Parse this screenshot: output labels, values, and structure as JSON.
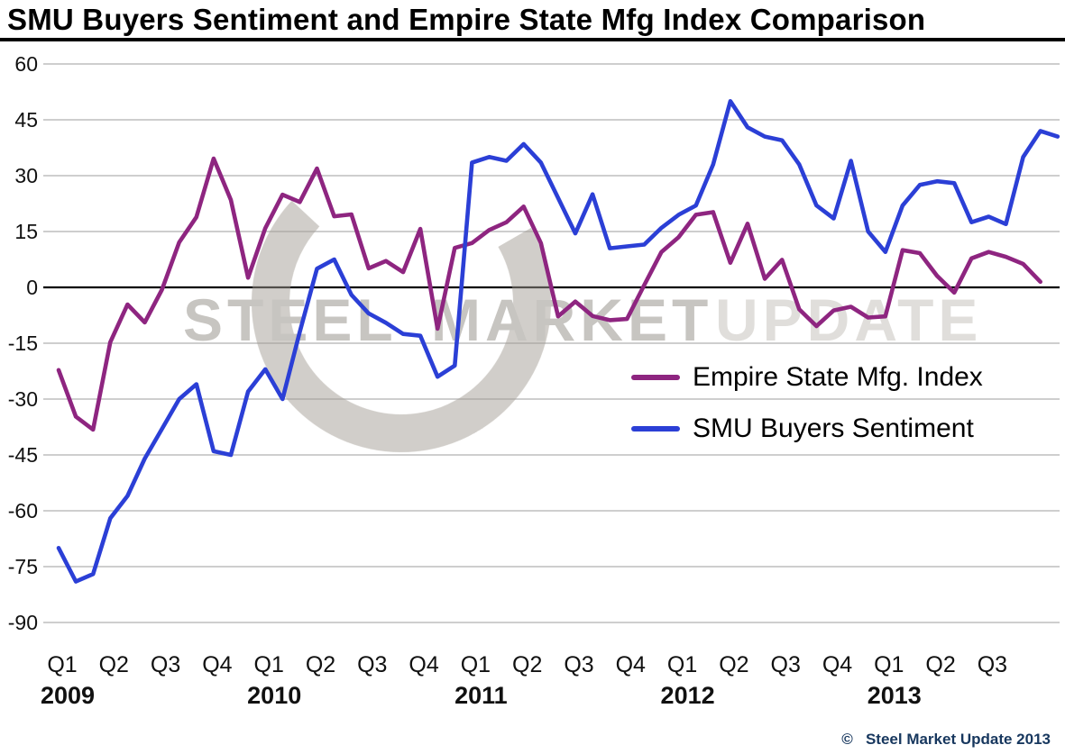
{
  "page": {
    "title": "SMU Buyers Sentiment and Empire State Mfg Index Comparison",
    "copyright": "©   Steel Market Update 2013"
  },
  "watermark": {
    "words": [
      "STEEL",
      "MARKET",
      "UPDATE"
    ]
  },
  "chart_data": {
    "type": "line",
    "title": "SMU Buyers Sentiment and Empire State Mfg Index Comparison",
    "xlabel": "",
    "ylabel": "",
    "grid": true,
    "legend_position": "middle-right",
    "y_axis": {
      "min": -90,
      "max": 60,
      "tick_step": 15,
      "ticks": [
        60,
        45,
        30,
        15,
        0,
        -15,
        -30,
        -45,
        -60,
        -75,
        -90
      ]
    },
    "x_axis": {
      "unit": "month",
      "start": "Q1 2009",
      "quarter_labels": [
        {
          "label": "Q1",
          "month_index": 0
        },
        {
          "label": "Q2",
          "month_index": 3
        },
        {
          "label": "Q3",
          "month_index": 6
        },
        {
          "label": "Q4",
          "month_index": 9
        },
        {
          "label": "Q1",
          "month_index": 12
        },
        {
          "label": "Q2",
          "month_index": 15
        },
        {
          "label": "Q3",
          "month_index": 18
        },
        {
          "label": "Q4",
          "month_index": 21
        },
        {
          "label": "Q1",
          "month_index": 24
        },
        {
          "label": "Q2",
          "month_index": 27
        },
        {
          "label": "Q3",
          "month_index": 30
        },
        {
          "label": "Q4",
          "month_index": 33
        },
        {
          "label": "Q1",
          "month_index": 36
        },
        {
          "label": "Q2",
          "month_index": 39
        },
        {
          "label": "Q3",
          "month_index": 42
        },
        {
          "label": "Q4",
          "month_index": 45
        },
        {
          "label": "Q1",
          "month_index": 48
        },
        {
          "label": "Q2",
          "month_index": 51
        },
        {
          "label": "Q3",
          "month_index": 54
        }
      ],
      "year_labels": [
        {
          "label": "2009",
          "month_index": 0
        },
        {
          "label": "2010",
          "month_index": 12
        },
        {
          "label": "2011",
          "month_index": 24
        },
        {
          "label": "2012",
          "month_index": 36
        },
        {
          "label": "2013",
          "month_index": 48
        }
      ]
    },
    "series": [
      {
        "id": "empire-state-mfg-index",
        "name": "Empire State Mfg. Index",
        "color": "#8e2580",
        "values": [
          -22.2,
          -34.7,
          -38.2,
          -14.7,
          -4.6,
          -9.4,
          -0.6,
          12.1,
          18.9,
          34.6,
          23.5,
          2.6,
          15.9,
          24.9,
          22.9,
          31.9,
          19.1,
          19.6,
          5.1,
          7.1,
          4.1,
          15.7,
          -11.1,
          10.6,
          11.9,
          15.4,
          17.5,
          21.7,
          11.9,
          -7.8,
          -3.8,
          -7.7,
          -8.8,
          -8.5,
          0.6,
          9.5,
          13.5,
          19.5,
          20.2,
          6.6,
          17.1,
          2.3,
          7.4,
          -5.9,
          -10.4,
          -6.2,
          -5.2,
          -8.1,
          -7.8,
          10.0,
          9.2,
          3.1,
          -1.4,
          7.8,
          9.5,
          8.2,
          6.3,
          1.5
        ]
      },
      {
        "id": "smu-buyers-sentiment",
        "name": "SMU Buyers Sentiment",
        "color": "#2b3fd6",
        "values": [
          -70,
          -79,
          -77,
          -62,
          -56,
          -46,
          -38,
          -30,
          -26,
          -44,
          -45,
          -28,
          -22,
          -30,
          -12,
          5,
          7.5,
          -2,
          -7,
          -9.5,
          -12.5,
          -13,
          -24,
          -21,
          33.5,
          35,
          34,
          38.5,
          33.5,
          24,
          14.5,
          25,
          10.5,
          11,
          11.5,
          16,
          19.5,
          22,
          33,
          50,
          43,
          40.5,
          39.5,
          33,
          22,
          18.5,
          34,
          15,
          9.5,
          22,
          27.5,
          28.5,
          28,
          17.5,
          19,
          17,
          35,
          42,
          40.5
        ]
      }
    ]
  }
}
